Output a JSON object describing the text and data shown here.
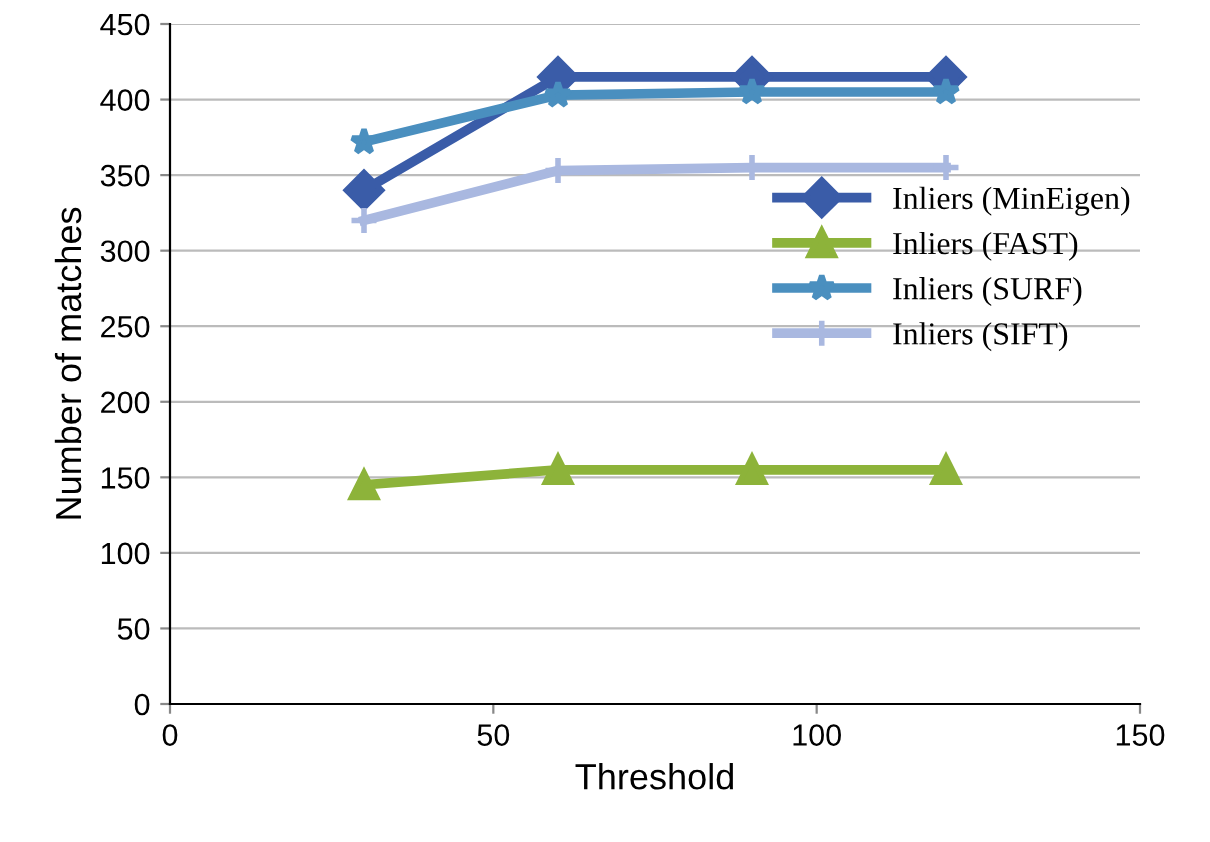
{
  "chart_data": {
    "type": "line",
    "xlabel": "Threshold",
    "ylabel": "Number of matches",
    "x": [
      30,
      60,
      90,
      120
    ],
    "series": [
      {
        "name": "Inliers (MinEigen)",
        "color": "#3a5ca8",
        "marker": "diamond",
        "values": [
          340,
          415,
          415,
          415
        ]
      },
      {
        "name": "Inliers (FAST)",
        "color": "#8db33a",
        "marker": "triangle",
        "values": [
          145,
          155,
          155,
          155
        ]
      },
      {
        "name": "Inliers (SURF)",
        "color": "#4a8fbf",
        "marker": "star",
        "values": [
          372,
          403,
          405,
          405
        ]
      },
      {
        "name": "Inliers (SIFT)",
        "color": "#a9b8e0",
        "marker": "cross",
        "values": [
          320,
          353,
          355,
          355
        ]
      }
    ],
    "xlim": [
      0,
      150
    ],
    "xticks": [
      0,
      50,
      100,
      150
    ],
    "ylim": [
      0,
      450
    ],
    "yticks": [
      0,
      50,
      100,
      150,
      200,
      250,
      300,
      350,
      400,
      450
    ],
    "grid": "y",
    "legend": "right"
  }
}
